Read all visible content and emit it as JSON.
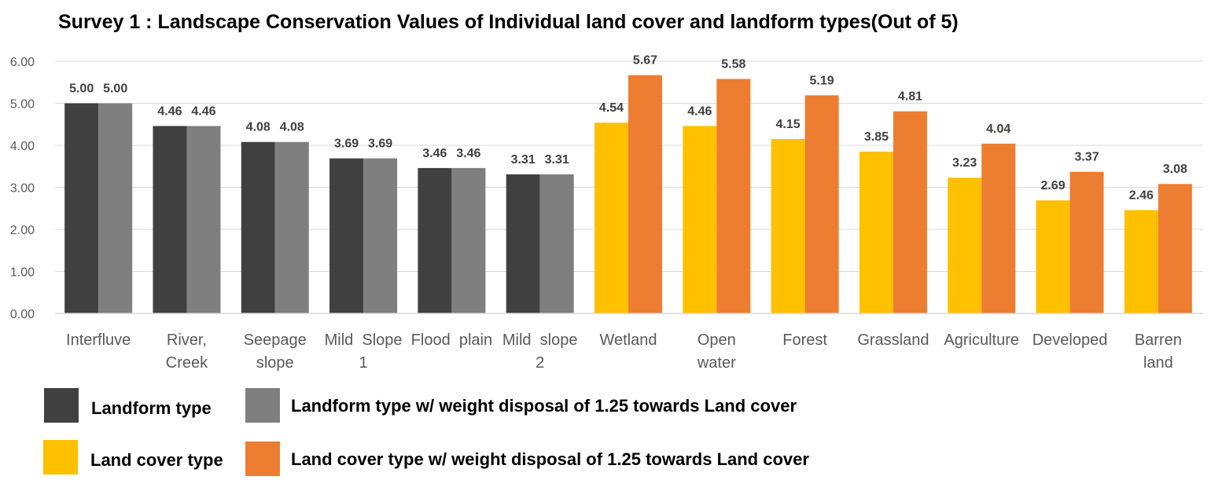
{
  "chart_data": {
    "type": "bar",
    "title": "Survey 1 : Landscape Conservation Values of Individual land cover and landform types(Out of 5)",
    "xlabel": "",
    "ylabel": "",
    "ylim": [
      0,
      6
    ],
    "yticks": [
      "0.00",
      "1.00",
      "2.00",
      "3.00",
      "4.00",
      "5.00",
      "6.00"
    ],
    "grid": true,
    "legend_position": "bottom",
    "groups": [
      {
        "categories": [
          [
            "Interfluve"
          ],
          [
            "River,",
            "Creek"
          ],
          [
            "Seepage",
            "slope"
          ],
          [
            "Mild  Slope",
            "1"
          ],
          [
            "Flood  plain"
          ],
          [
            "Mild  slope",
            "2"
          ]
        ],
        "series": [
          {
            "name": "Landform type",
            "color": "#404040",
            "values": [
              5.0,
              4.46,
              4.08,
              3.69,
              3.46,
              3.31
            ]
          },
          {
            "name": "Landform type w/ weight disposal of 1.25 towards Land cover",
            "color": "#7f7f7f",
            "values": [
              5.0,
              4.46,
              4.08,
              3.69,
              3.46,
              3.31
            ]
          }
        ]
      },
      {
        "categories": [
          [
            "Wetland"
          ],
          [
            "Open",
            "water"
          ],
          [
            "Forest"
          ],
          [
            "Grassland"
          ],
          [
            "Agriculture"
          ],
          [
            "Developed"
          ],
          [
            "Barren",
            "land"
          ]
        ],
        "series": [
          {
            "name": "Land cover type",
            "color": "#ffc000",
            "values": [
              4.54,
              4.46,
              4.15,
              3.85,
              3.23,
              2.69,
              2.46
            ]
          },
          {
            "name": "Land cover type w/ weight disposal of 1.25 towards Land cover",
            "color": "#ed7d31",
            "values": [
              5.67,
              5.58,
              5.19,
              4.81,
              4.04,
              3.37,
              3.08
            ]
          }
        ]
      }
    ]
  }
}
